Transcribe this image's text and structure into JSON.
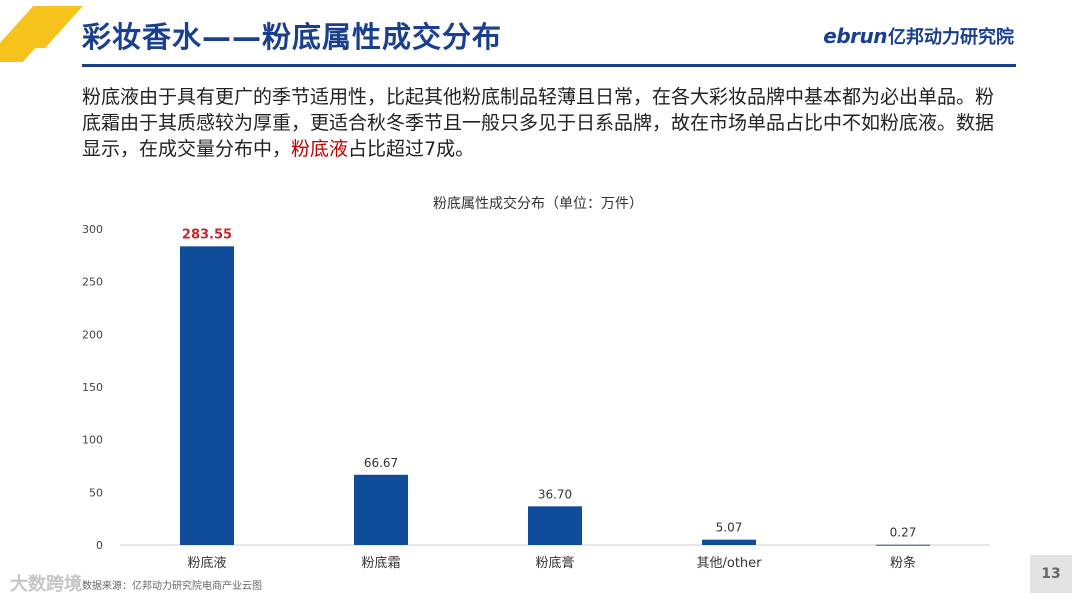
{
  "slide": {
    "title": "彩妆香水——粉底属性成交分布",
    "logo": {
      "word": "ebrun",
      "cn": "亿邦动力研究院"
    },
    "intro": {
      "part1": "粉底液由于具有更广的季节适用性，比起其他粉底制品轻薄且日常，在各大彩妆品牌中基本都为必出单品。粉底霜由于其质感较为厚重，更适合秋冬季节且一般只多见于日系品牌，故在市场单品占比中不如粉底液。数据显示，在成交量分布中，",
      "highlight": "粉底液",
      "part2": "占比超过7成。"
    },
    "source": "数据来源：亿邦动力研究院电商产业云图",
    "watermark": "大数跨境",
    "page_number": "13"
  },
  "colors": {
    "bar": "#0f4c9a",
    "title": "#1b3f8f",
    "highlight": "#c0292c"
  },
  "chart_data": {
    "type": "bar",
    "title": "粉底属性成交分布（单位：万件）",
    "categories": [
      "粉底液",
      "粉底霜",
      "粉底膏",
      "其他/other",
      "粉条"
    ],
    "values": [
      283.55,
      66.67,
      36.7,
      5.07,
      0.27
    ],
    "data_labels": [
      "283.55",
      "66.67",
      "36.70",
      "5.07",
      "0.27"
    ],
    "emphasized_index": 0,
    "yticks": [
      0,
      50,
      100,
      150,
      200,
      250,
      300
    ],
    "ylim": [
      0,
      300
    ],
    "xlabel": "",
    "ylabel": "",
    "grid": false,
    "legend": "none"
  }
}
